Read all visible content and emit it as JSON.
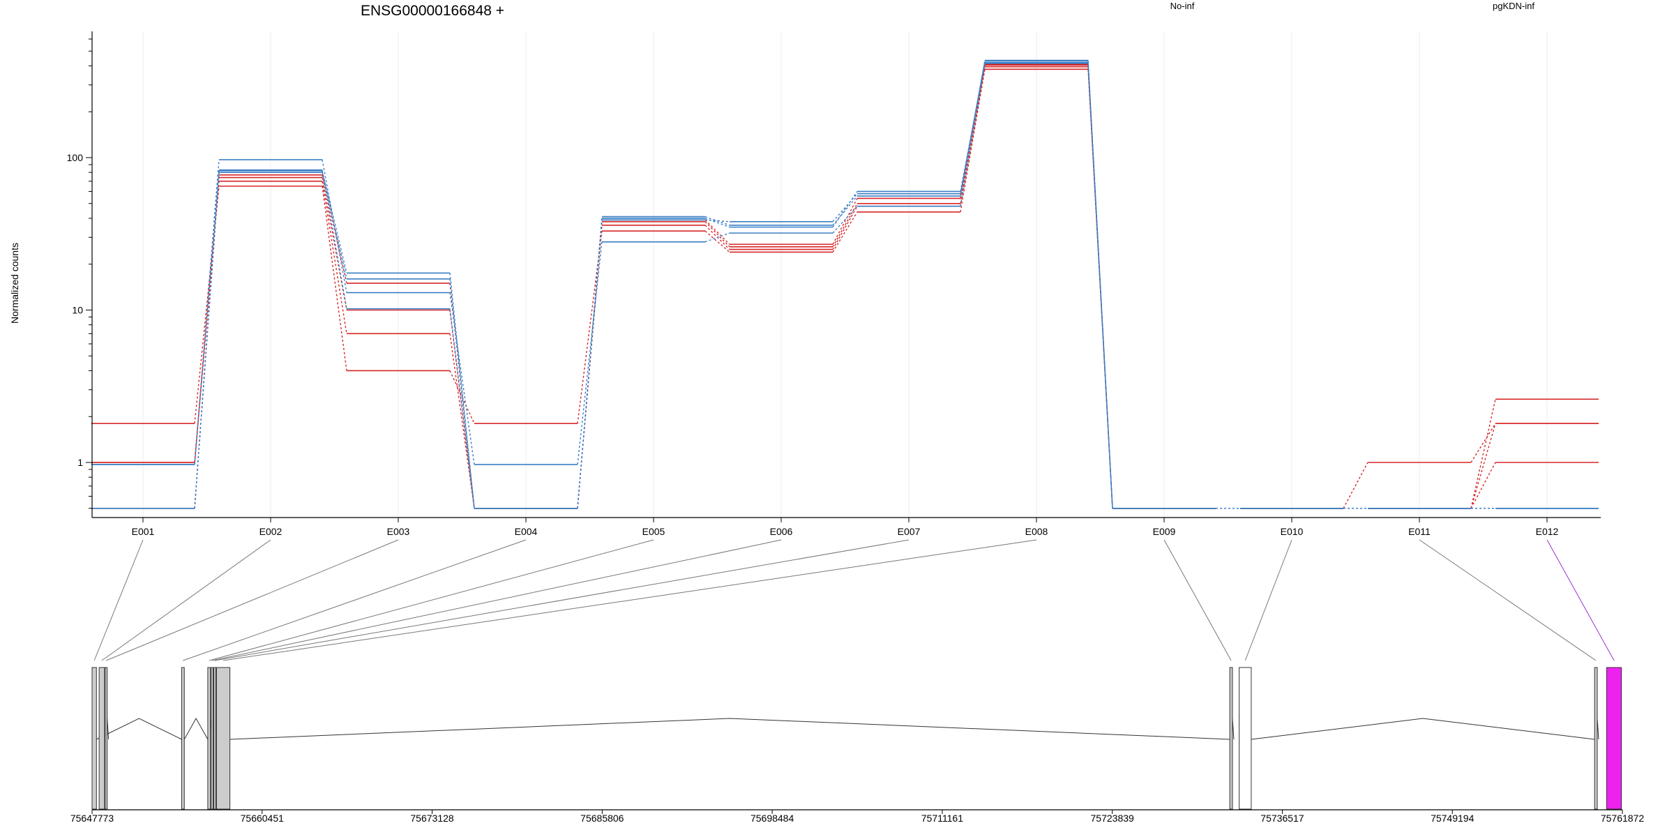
{
  "chart_data": {
    "type": "line",
    "title": "ENSG00000166848 +",
    "ylabel": "Normalized counts",
    "y_scale": "log",
    "yticks": [
      1,
      10,
      100
    ],
    "ytick_labels": [
      "1",
      "10",
      "100"
    ],
    "ylim": [
      0.48,
      600
    ],
    "grid": false,
    "legend": [
      {
        "name": "No-inf",
        "color": "#d62728"
      },
      {
        "name": "pgKDN-inf",
        "color": "#3b7fc4"
      }
    ],
    "categories": [
      "E001",
      "E002",
      "E003",
      "E004",
      "E005",
      "E006",
      "E007",
      "E008",
      "E009",
      "E010",
      "E011",
      "E012"
    ],
    "series": [
      {
        "group": "No-inf",
        "values": [
          1.8,
          65,
          4,
          1.8,
          33,
          24,
          44,
          380,
          0.5,
          0.5,
          0.5,
          1
        ]
      },
      {
        "group": "No-inf",
        "values": [
          1.0,
          70,
          7,
          0.5,
          36,
          25,
          48,
          395,
          0.5,
          0.5,
          1,
          1.8
        ]
      },
      {
        "group": "No-inf",
        "values": [
          1.0,
          74,
          10,
          0.5,
          38,
          26,
          50,
          405,
          0.5,
          0.5,
          0.5,
          1.8
        ]
      },
      {
        "group": "No-inf",
        "values": [
          0.5,
          77,
          15,
          0.5,
          39,
          27,
          54,
          410,
          0.5,
          0.5,
          0.5,
          2.6
        ]
      },
      {
        "group": "pgKDN-inf",
        "values": [
          0.97,
          97,
          13,
          0.97,
          28,
          32,
          48,
          415,
          0.5,
          0.5,
          0.5,
          0.5
        ]
      },
      {
        "group": "pgKDN-inf",
        "values": [
          0.5,
          82,
          17.5,
          0.5,
          39,
          38,
          58,
          430,
          0.5,
          0.5,
          0.5,
          0.5
        ]
      },
      {
        "group": "pgKDN-inf",
        "values": [
          0.5,
          80,
          16,
          0.5,
          40,
          35,
          60,
          420,
          0.5,
          0.5,
          0.5,
          0.5
        ]
      },
      {
        "group": "pgKDN-inf",
        "values": [
          0.97,
          83,
          10.2,
          0.5,
          41,
          36,
          56,
          435,
          0.5,
          0.5,
          0.5,
          0.5
        ]
      }
    ],
    "genomic_axis": {
      "ticks": [
        75647773,
        75660451,
        75673128,
        75685806,
        75698484,
        75711161,
        75723839,
        75736517,
        75749194,
        75761872
      ],
      "range": [
        75647773,
        75761872
      ]
    },
    "exons": [
      {
        "id": "E001",
        "start": 75647773,
        "end": 75648100,
        "fill": "#cccccc"
      },
      {
        "id": "E002",
        "start": 75648300,
        "end": 75648700,
        "fill": "#cccccc"
      },
      {
        "id": "E003",
        "start": 75648750,
        "end": 75648900,
        "fill": "#cccccc"
      },
      {
        "id": "E004",
        "start": 75654450,
        "end": 75654650,
        "fill": "#cccccc"
      },
      {
        "id": "E005",
        "start": 75656400,
        "end": 75656600,
        "fill": "#cccccc"
      },
      {
        "id": "E006",
        "start": 75656650,
        "end": 75656800,
        "fill": "#cccccc"
      },
      {
        "id": "E007",
        "start": 75656850,
        "end": 75657000,
        "fill": "#cccccc"
      },
      {
        "id": "E008",
        "start": 75657050,
        "end": 75658050,
        "fill": "#cccccc"
      },
      {
        "id": "E009",
        "start": 75732600,
        "end": 75732800,
        "fill": "#cccccc"
      },
      {
        "id": "E010",
        "start": 75733300,
        "end": 75734200,
        "fill": "#ffffff"
      },
      {
        "id": "E011",
        "start": 75759800,
        "end": 75760000,
        "fill": "#cccccc"
      },
      {
        "id": "E012",
        "start": 75760700,
        "end": 75761800,
        "fill": "#ee22ee"
      }
    ],
    "introns": [
      [
        75648100,
        75654450
      ],
      [
        75654650,
        75656400
      ],
      [
        75658050,
        75732600
      ],
      [
        75734200,
        75759800
      ]
    ],
    "junction_ticks": [
      75648900,
      75656600,
      75732800,
      75760000
    ]
  }
}
